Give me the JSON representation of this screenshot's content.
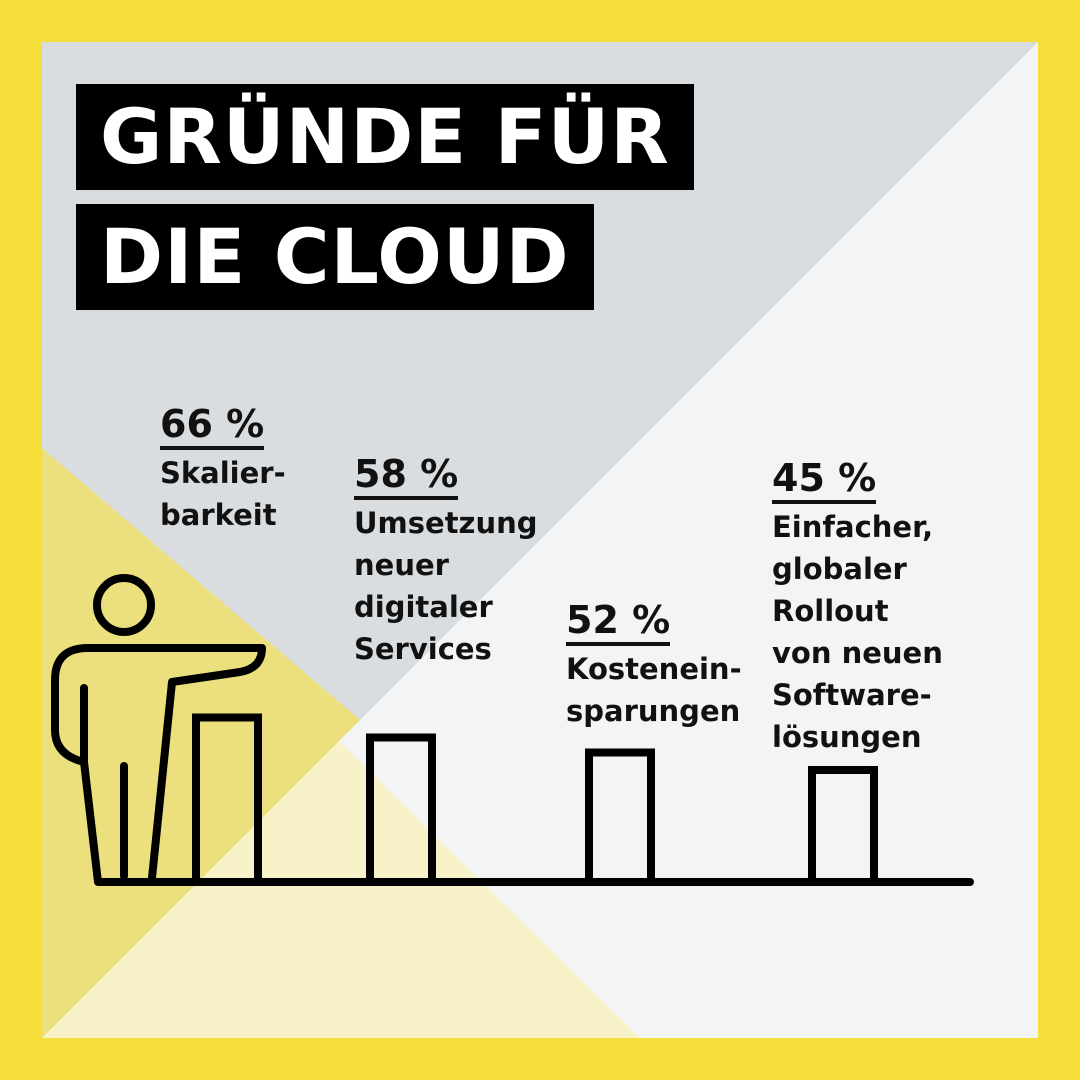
{
  "title": [
    "GRÜNDE FÜR",
    "DIE CLOUD"
  ],
  "colors": {
    "frame": "#f7df3b",
    "panel_gray": "#d9dde0",
    "panel_light": "#f3f4f6",
    "yellow_tint": "#ebe07d",
    "yellow_pale": "#f8f2c8",
    "ink": "#000000"
  },
  "icons": [
    "person-icon"
  ],
  "chart_data": {
    "type": "bar",
    "unit": "%",
    "categories": [
      "Skalier-\nbarkeit",
      "Umsetzung\nneuer\ndigitaler\nServices",
      "Kostenein-\nsparungen",
      "Einfacher,\nglobaler\nRollout\nvon neuen\nSoftware-\nlösungen"
    ],
    "values": [
      66,
      58,
      52,
      45
    ],
    "value_labels": [
      "66 %",
      "58 %",
      "52 %",
      "45 %"
    ]
  }
}
